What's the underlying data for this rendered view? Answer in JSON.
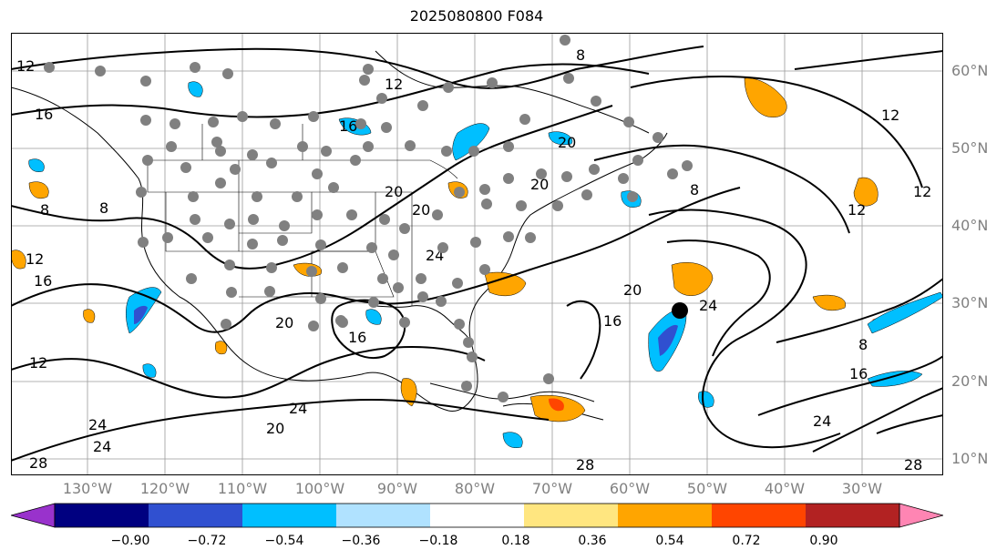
{
  "title": "2025080800 F084",
  "lat_labels": [
    "60°N",
    "50°N",
    "40°N",
    "30°N",
    "20°N",
    "10°N"
  ],
  "lon_labels": [
    "130°W",
    "120°W",
    "110°W",
    "100°W",
    "90°W",
    "80°W",
    "70°W",
    "60°W",
    "50°W",
    "40°W",
    "30°W"
  ],
  "colorbar": {
    "ticks": [
      "−0.90",
      "−0.72",
      "−0.54",
      "−0.36",
      "−0.18",
      "0.18",
      "0.36",
      "0.54",
      "0.72",
      "0.90"
    ],
    "colors": [
      "#9932cc",
      "#000080",
      "#3050d0",
      "#00bfff",
      "#b0e2ff",
      "#ffffff",
      "#ffe680",
      "#ffa500",
      "#ff4500",
      "#b22222",
      "#ff85b3"
    ]
  },
  "contour_labels": [
    "12",
    "16",
    "8",
    "8",
    "12",
    "16",
    "12",
    "20",
    "20",
    "24",
    "24",
    "28",
    "20",
    "24",
    "20",
    "16",
    "12",
    "8",
    "24",
    "28",
    "12",
    "8",
    "16",
    "24",
    "28",
    "24",
    "20",
    "20",
    "16",
    "12",
    "8",
    "12",
    "16",
    "20"
  ],
  "colors": {
    "positive_fill": "#ffa500",
    "negative_fill": "#00bfff",
    "dot": "#808080",
    "marker": "#000000"
  }
}
